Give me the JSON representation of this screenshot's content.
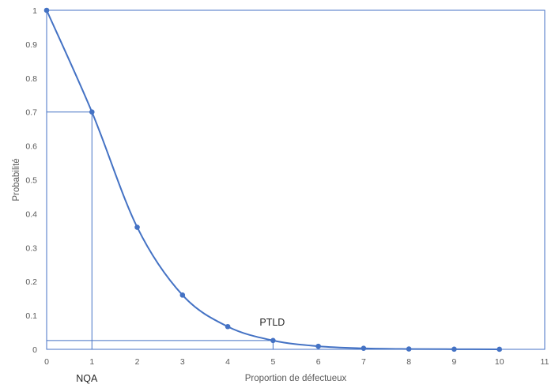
{
  "colors": {
    "series": "#4472C4",
    "frame": "#4472C4",
    "text": "#595959"
  },
  "chart_data": {
    "type": "line",
    "smooth": true,
    "markers": true,
    "grid": false,
    "legend": "none",
    "title": "",
    "xlabel": "Proportion de défectueux",
    "ylabel": "Probabilité",
    "xlim": [
      0,
      11
    ],
    "ylim": [
      0,
      1
    ],
    "xticks": [
      "0",
      "1",
      "2",
      "3",
      "4",
      "5",
      "6",
      "7",
      "8",
      "9",
      "10",
      "11"
    ],
    "yticks": [
      "0",
      "0.1",
      "0.2",
      "0.3",
      "0.4",
      "0.5",
      "0.6",
      "0.7",
      "0.8",
      "0.9",
      "1"
    ],
    "series": [
      {
        "x": [
          0,
          1,
          2,
          3,
          4,
          5,
          6,
          7,
          8,
          9,
          10
        ],
        "values": [
          1.0,
          0.7,
          0.36,
          0.16,
          0.067,
          0.026,
          0.009,
          0.003,
          0.001,
          0.0004,
          0.0001
        ]
      }
    ],
    "reference_lines": [
      {
        "x": 1,
        "y": 0.7
      },
      {
        "x": 5,
        "y": 0.026
      }
    ],
    "annotations": [
      {
        "text": "NQA",
        "x": 1,
        "y": 0.7
      },
      {
        "text": "PTLD",
        "x": 5,
        "y": 0.026
      }
    ]
  }
}
